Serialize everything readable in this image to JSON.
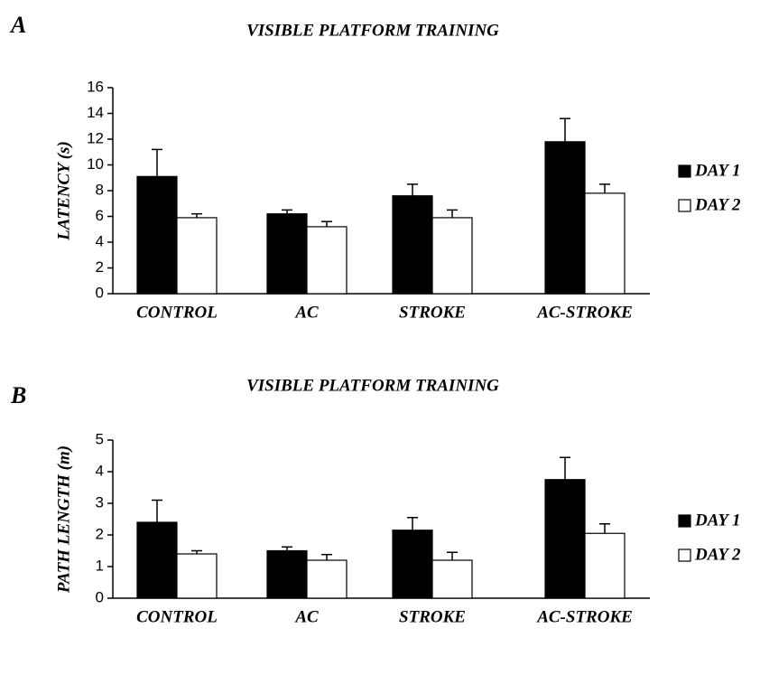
{
  "chart_data": [
    {
      "type": "bar",
      "panel": "A",
      "title": "VISIBLE PLATFORM TRAINING",
      "y_label": "LATENCY (s)",
      "categories": [
        "CONTROL",
        "AC",
        "STROKE",
        "AC-STROKE"
      ],
      "series": [
        {
          "name": "DAY 1",
          "color": "#000000",
          "values": [
            9.1,
            6.2,
            7.6,
            11.8
          ],
          "errors": [
            2.1,
            0.3,
            0.9,
            1.8
          ]
        },
        {
          "name": "DAY 2",
          "color": "#ffffff",
          "values": [
            5.9,
            5.2,
            5.9,
            7.8
          ],
          "errors": [
            0.3,
            0.4,
            0.6,
            0.7
          ]
        }
      ],
      "ylim": [
        0,
        16
      ],
      "yticks": [
        0,
        2,
        4,
        6,
        8,
        10,
        12,
        14,
        16
      ],
      "legend": "right"
    },
    {
      "type": "bar",
      "panel": "B",
      "title": "VISIBLE PLATFORM TRAINING",
      "y_label": "PATH LENGTH (m)",
      "categories": [
        "CONTROL",
        "AC",
        "STROKE",
        "AC-STROKE"
      ],
      "series": [
        {
          "name": "DAY 1",
          "color": "#000000",
          "values": [
            2.4,
            1.5,
            2.15,
            3.75
          ],
          "errors": [
            0.7,
            0.12,
            0.4,
            0.7
          ]
        },
        {
          "name": "DAY 2",
          "color": "#ffffff",
          "values": [
            1.4,
            1.2,
            1.2,
            2.05
          ],
          "errors": [
            0.1,
            0.18,
            0.25,
            0.3
          ]
        }
      ],
      "ylim": [
        0,
        5
      ],
      "yticks": [
        0,
        1,
        2,
        3,
        4,
        5
      ],
      "legend": "right"
    }
  ]
}
